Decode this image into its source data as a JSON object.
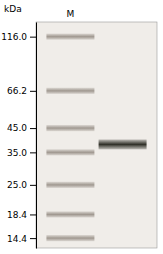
{
  "chart_data": {
    "type": "gel",
    "y_label": "kDa",
    "log": "y",
    "categories": [
      "M",
      null
    ],
    "lanes": [
      {
        "color": "#a09890",
        "values": [
          116.0,
          66.2,
          45.0,
          35.0,
          25.0,
          18.4,
          14.4
        ]
      },
      {
        "color": "#303028",
        "values": [
          38.0
        ]
      }
    ],
    "ylim": [
      13.0,
      135.0
    ],
    "yticks": [
      {
        "value": 116.0,
        "label": "116.0"
      },
      {
        "value": 66.2,
        "label": "66.2"
      },
      {
        "value": 45.0,
        "label": "45.0"
      },
      {
        "value": 35.0,
        "label": "35.0"
      },
      {
        "value": 25.0,
        "label": "25.0"
      },
      {
        "value": 18.4,
        "label": "18.4"
      },
      {
        "value": 14.4,
        "label": "14.4"
      }
    ],
    "grid": false
  }
}
